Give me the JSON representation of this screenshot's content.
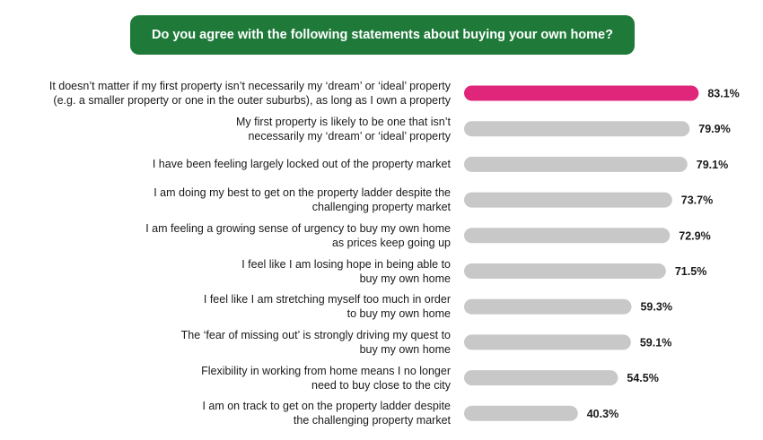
{
  "chart_data": {
    "type": "bar",
    "orientation": "horizontal",
    "title": "Do you agree with the following statements about buying your own home?",
    "categories": [
      [
        "It doesn’t matter if my first property isn’t necessarily my ‘dream’ or ‘ideal’ property",
        "(e.g. a smaller property or one in the outer suburbs), as long as I own a property"
      ],
      [
        "My first property is likely to be one that isn’t",
        "necessarily my ‘dream’ or ‘ideal’ property"
      ],
      [
        "I have been feeling largely locked out of the property market"
      ],
      [
        "I am doing my best to get on the property ladder despite the",
        "challenging property market"
      ],
      [
        "I am feeling a growing sense of urgency to buy my own home",
        "as prices keep going up"
      ],
      [
        "I feel like I am losing hope in being able to",
        "buy my own home"
      ],
      [
        "I feel like I am stretching myself too much in order",
        "to buy my own home"
      ],
      [
        "The ‘fear of missing out’ is strongly driving my quest to",
        "buy my own home"
      ],
      [
        "Flexibility in working from home means I no longer",
        "need to buy close to the city"
      ],
      [
        "I am on track to get on the property ladder despite",
        "the challenging property market"
      ]
    ],
    "values": [
      83.1,
      79.9,
      79.1,
      73.7,
      72.9,
      71.5,
      59.3,
      59.1,
      54.5,
      40.3
    ],
    "value_labels": [
      "83.1%",
      "79.9%",
      "79.1%",
      "73.7%",
      "72.9%",
      "71.5%",
      "59.3%",
      "59.1%",
      "54.5%",
      "40.3%"
    ],
    "unit": "%",
    "highlight_index": 0,
    "colors": {
      "highlight": "#e0267a",
      "default": "#c8c8c8",
      "banner": "#1f7a3a"
    },
    "xlim": [
      0,
      100
    ],
    "grid": false,
    "legend": "none"
  }
}
